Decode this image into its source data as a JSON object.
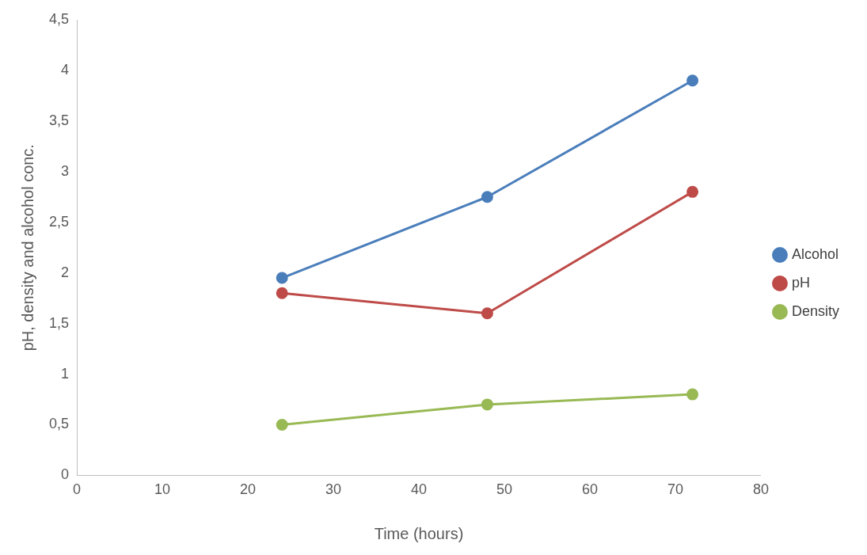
{
  "chart_data": {
    "type": "line",
    "xlabel": "Time (hours)",
    "ylabel": "pH, density and alcohol conc.",
    "x": [
      24,
      48,
      72
    ],
    "series": [
      {
        "name": "Alcohol",
        "color": "#4a7ebb",
        "values": [
          1.95,
          2.75,
          3.9
        ]
      },
      {
        "name": "pH",
        "color": "#be4b48",
        "values": [
          1.8,
          1.6,
          2.8
        ]
      },
      {
        "name": "Density",
        "color": "#98b954",
        "values": [
          0.5,
          0.7,
          0.8
        ]
      }
    ],
    "xlim": [
      0,
      80
    ],
    "xticks": [
      0,
      10,
      20,
      30,
      40,
      50,
      60,
      70,
      80
    ],
    "ylim": [
      0,
      4.5
    ],
    "yticks": [
      0,
      {
        "value": 0.5,
        "label": "0,5"
      },
      1,
      {
        "value": 1.5,
        "label": "1,5"
      },
      2,
      {
        "value": 2.5,
        "label": "2,5"
      },
      3,
      {
        "value": 3.5,
        "label": "3,5"
      },
      4,
      {
        "value": 4.5,
        "label": "4,5"
      }
    ],
    "grid": false,
    "legend": "right",
    "marker": "circle",
    "line_style": "solid"
  }
}
